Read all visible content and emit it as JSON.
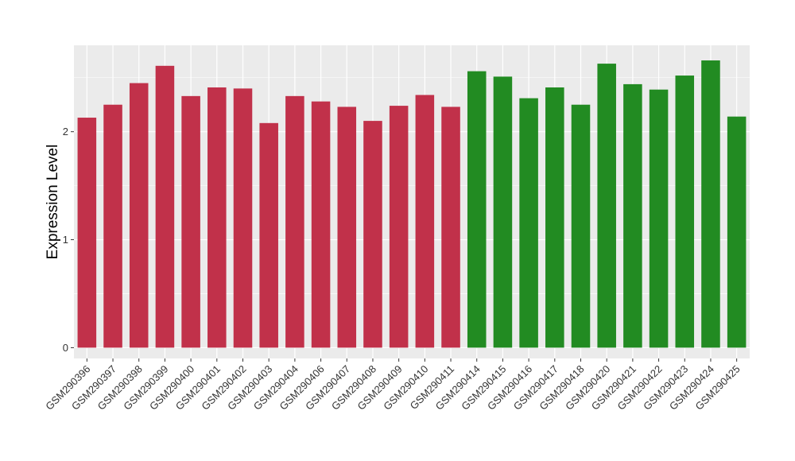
{
  "chart_data": {
    "type": "bar",
    "title": "",
    "xlabel": "",
    "ylabel": "Expression Level",
    "ylim": [
      -0.1,
      2.8
    ],
    "yticks": [
      0,
      1,
      2
    ],
    "grid": true,
    "legend": "none",
    "colors": {
      "group_a": "#c1314a",
      "group_b": "#228b22",
      "panel": "#ebebeb",
      "grid": "#ffffff"
    },
    "categories": [
      "GSM290396",
      "GSM290397",
      "GSM290398",
      "GSM290399",
      "GSM290400",
      "GSM290401",
      "GSM290402",
      "GSM290403",
      "GSM290404",
      "GSM290406",
      "GSM290407",
      "GSM290408",
      "GSM290409",
      "GSM290410",
      "GSM290411",
      "GSM290414",
      "GSM290415",
      "GSM290416",
      "GSM290417",
      "GSM290418",
      "GSM290420",
      "GSM290421",
      "GSM290422",
      "GSM290423",
      "GSM290424",
      "GSM290425"
    ],
    "values": [
      2.13,
      2.25,
      2.45,
      2.61,
      2.33,
      2.41,
      2.4,
      2.08,
      2.33,
      2.28,
      2.23,
      2.1,
      2.24,
      2.34,
      2.23,
      2.56,
      2.51,
      2.31,
      2.41,
      2.25,
      2.63,
      2.44,
      2.39,
      2.52,
      2.66,
      2.14
    ],
    "groups": [
      "a",
      "a",
      "a",
      "a",
      "a",
      "a",
      "a",
      "a",
      "a",
      "a",
      "a",
      "a",
      "a",
      "a",
      "a",
      "b",
      "b",
      "b",
      "b",
      "b",
      "b",
      "b",
      "b",
      "b",
      "b",
      "b"
    ]
  }
}
